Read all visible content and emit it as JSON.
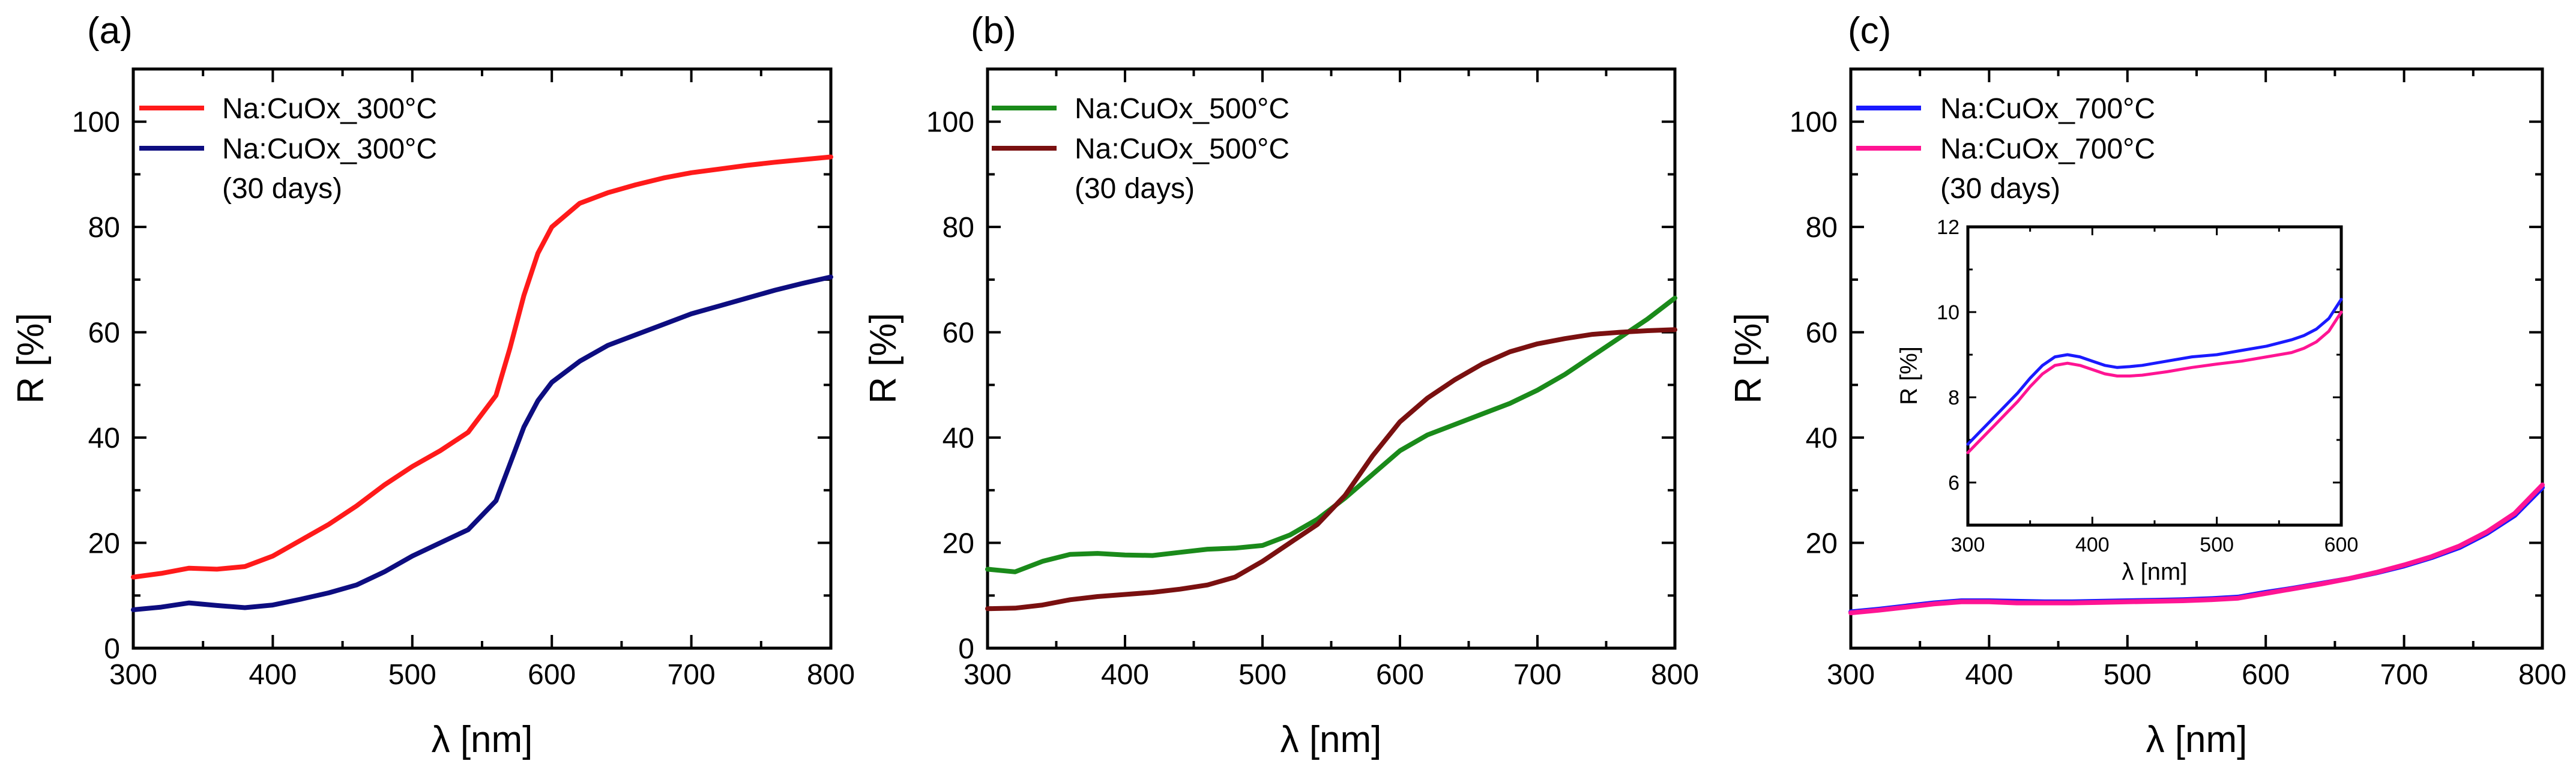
{
  "chart_data": [
    {
      "panel_label": "(a)",
      "type": "line",
      "xlabel": "λ [nm]",
      "ylabel": "R [%]",
      "xlim": [
        300,
        800
      ],
      "ylim": [
        0,
        110
      ],
      "xticks": [
        300,
        400,
        500,
        600,
        700,
        800
      ],
      "yticks": [
        0,
        20,
        40,
        60,
        80,
        100
      ],
      "grid": false,
      "legend_position": "top-left",
      "legend": [
        {
          "line1": "Na:CuOx_300°C",
          "line2": "",
          "color": "#ff1a1a"
        },
        {
          "line1": "Na:CuOx_300°C",
          "line2": "(30 days)",
          "color": "#0d0d80"
        }
      ],
      "series": [
        {
          "name": "Na:CuOx_300°C",
          "color": "#ff1a1a",
          "x": [
            300,
            320,
            340,
            360,
            380,
            400,
            420,
            440,
            460,
            480,
            500,
            520,
            540,
            560,
            570,
            580,
            590,
            600,
            620,
            640,
            660,
            680,
            700,
            720,
            740,
            760,
            780,
            800
          ],
          "values": [
            13.5,
            14.2,
            15.2,
            15.0,
            15.5,
            17.5,
            20.5,
            23.5,
            27.0,
            31.0,
            34.5,
            37.5,
            41.0,
            48.0,
            57.0,
            67.0,
            75.0,
            80.0,
            84.5,
            86.5,
            88.0,
            89.3,
            90.3,
            91.0,
            91.7,
            92.3,
            92.8,
            93.3
          ]
        },
        {
          "name": "Na:CuOx_300°C (30 days)",
          "color": "#0d0d80",
          "x": [
            300,
            320,
            340,
            360,
            380,
            400,
            420,
            440,
            460,
            480,
            500,
            520,
            540,
            560,
            570,
            580,
            590,
            600,
            620,
            640,
            660,
            680,
            700,
            720,
            740,
            760,
            780,
            800
          ],
          "values": [
            7.3,
            7.8,
            8.6,
            8.1,
            7.7,
            8.2,
            9.3,
            10.5,
            12.0,
            14.5,
            17.5,
            20.0,
            22.5,
            28.0,
            35.0,
            42.0,
            47.0,
            50.5,
            54.5,
            57.5,
            59.5,
            61.5,
            63.5,
            65.0,
            66.5,
            68.0,
            69.3,
            70.5
          ]
        }
      ]
    },
    {
      "panel_label": "(b)",
      "type": "line",
      "xlabel": "λ [nm]",
      "ylabel": "R [%]",
      "xlim": [
        300,
        800
      ],
      "ylim": [
        0,
        110
      ],
      "xticks": [
        300,
        400,
        500,
        600,
        700,
        800
      ],
      "yticks": [
        0,
        20,
        40,
        60,
        80,
        100
      ],
      "grid": false,
      "legend_position": "top-left",
      "legend": [
        {
          "line1": "Na:CuOx_500°C",
          "line2": "",
          "color": "#1a8a1a"
        },
        {
          "line1": "Na:CuOx_500°C",
          "line2": "(30 days)",
          "color": "#7a1010"
        }
      ],
      "series": [
        {
          "name": "Na:CuOx_500°C",
          "color": "#1a8a1a",
          "x": [
            300,
            320,
            340,
            360,
            380,
            400,
            420,
            440,
            460,
            480,
            500,
            520,
            540,
            560,
            580,
            600,
            620,
            640,
            660,
            680,
            700,
            720,
            740,
            760,
            780,
            800
          ],
          "values": [
            15.0,
            14.5,
            16.5,
            17.8,
            18.0,
            17.7,
            17.6,
            18.2,
            18.8,
            19.0,
            19.5,
            21.5,
            24.5,
            28.5,
            33.0,
            37.5,
            40.5,
            42.5,
            44.5,
            46.5,
            49.0,
            52.0,
            55.5,
            59.0,
            62.5,
            66.5
          ]
        },
        {
          "name": "Na:CuOx_500°C (30 days)",
          "color": "#7a1010",
          "x": [
            300,
            320,
            340,
            360,
            380,
            400,
            420,
            440,
            460,
            480,
            500,
            520,
            540,
            560,
            580,
            600,
            620,
            640,
            660,
            680,
            700,
            720,
            740,
            760,
            780,
            800
          ],
          "values": [
            7.5,
            7.6,
            8.2,
            9.2,
            9.8,
            10.2,
            10.6,
            11.2,
            12.0,
            13.5,
            16.5,
            20.0,
            23.5,
            29.0,
            36.5,
            43.0,
            47.5,
            51.0,
            54.0,
            56.3,
            57.8,
            58.8,
            59.6,
            60.0,
            60.3,
            60.5
          ]
        }
      ]
    },
    {
      "panel_label": "(c)",
      "type": "line",
      "xlabel": "λ [nm]",
      "ylabel": "R [%]",
      "xlim": [
        300,
        800
      ],
      "ylim": [
        0,
        110
      ],
      "xticks": [
        300,
        400,
        500,
        600,
        700,
        800
      ],
      "yticks": [
        20,
        40,
        60,
        80,
        100
      ],
      "grid": false,
      "legend_position": "top-left",
      "legend": [
        {
          "line1": "Na:CuOx_700°C",
          "line2": "",
          "color": "#1a1aff"
        },
        {
          "line1": "Na:CuOx_700°C",
          "line2": "(30 days)",
          "color": "#ff1493"
        }
      ],
      "series": [
        {
          "name": "Na:CuOx_700°C",
          "color": "#1a1aff",
          "x": [
            300,
            320,
            340,
            360,
            380,
            400,
            420,
            440,
            460,
            480,
            500,
            520,
            540,
            560,
            580,
            600,
            620,
            640,
            660,
            680,
            700,
            720,
            740,
            760,
            780,
            800
          ],
          "values": [
            6.9,
            7.4,
            8.0,
            8.6,
            9.0,
            9.0,
            8.9,
            8.8,
            8.8,
            8.9,
            9.0,
            9.1,
            9.2,
            9.4,
            9.7,
            10.6,
            11.4,
            12.3,
            13.2,
            14.3,
            15.6,
            17.2,
            19.1,
            21.8,
            25.2,
            30.5
          ]
        },
        {
          "name": "Na:CuOx_700°C (30 days)",
          "color": "#ff1493",
          "x": [
            300,
            320,
            340,
            360,
            380,
            400,
            420,
            440,
            460,
            480,
            500,
            520,
            540,
            560,
            580,
            600,
            620,
            640,
            660,
            680,
            700,
            720,
            740,
            760,
            780,
            800
          ],
          "values": [
            6.7,
            7.2,
            7.8,
            8.4,
            8.8,
            8.8,
            8.6,
            8.6,
            8.6,
            8.7,
            8.8,
            8.9,
            9.0,
            9.2,
            9.5,
            10.4,
            11.3,
            12.2,
            13.2,
            14.4,
            15.8,
            17.4,
            19.4,
            22.1,
            25.6,
            31.0
          ]
        }
      ],
      "inset": {
        "type": "line",
        "xlabel": "λ [nm]",
        "ylabel": "R [%]",
        "xlim": [
          300,
          600
        ],
        "ylim": [
          5,
          12
        ],
        "xticks": [
          300,
          400,
          500,
          600
        ],
        "yticks": [
          6,
          8,
          10,
          12
        ],
        "series": [
          {
            "name": "Na:CuOx_700°C",
            "color": "#1a1aff",
            "x": [
              300,
              310,
              320,
              330,
              340,
              350,
              360,
              370,
              380,
              390,
              400,
              410,
              420,
              430,
              440,
              460,
              480,
              500,
              520,
              540,
              560,
              570,
              580,
              590,
              600
            ],
            "values": [
              6.9,
              7.2,
              7.5,
              7.8,
              8.1,
              8.45,
              8.75,
              8.95,
              9.0,
              8.95,
              8.85,
              8.75,
              8.7,
              8.72,
              8.75,
              8.85,
              8.95,
              9.0,
              9.1,
              9.2,
              9.35,
              9.45,
              9.6,
              9.85,
              10.3
            ]
          },
          {
            "name": "Na:CuOx_700°C (30 days)",
            "color": "#ff1493",
            "x": [
              300,
              310,
              320,
              330,
              340,
              350,
              360,
              370,
              380,
              390,
              400,
              410,
              420,
              430,
              440,
              460,
              480,
              500,
              520,
              540,
              560,
              570,
              580,
              590,
              600
            ],
            "values": [
              6.7,
              7.0,
              7.3,
              7.6,
              7.9,
              8.25,
              8.55,
              8.75,
              8.8,
              8.75,
              8.65,
              8.55,
              8.5,
              8.5,
              8.52,
              8.6,
              8.7,
              8.78,
              8.85,
              8.95,
              9.05,
              9.15,
              9.3,
              9.55,
              10.0
            ]
          }
        ]
      }
    }
  ]
}
